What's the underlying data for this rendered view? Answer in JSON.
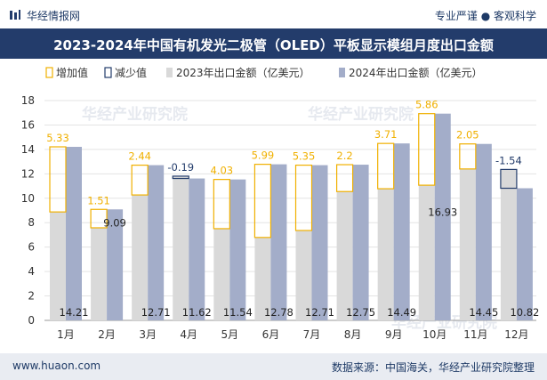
{
  "header": {
    "brand": "华经情报网",
    "tagline": "专业严谨 ● 客观科学"
  },
  "footer": {
    "site": "www.huaon.com",
    "source": "数据来源：中国海关，华经产业研究院整理"
  },
  "watermark": "华经产业研究院",
  "colors": {
    "brand_navy": "#233c6b",
    "bar_2023": "#d9d9d9",
    "bar_2024": "#a3adc9",
    "increase": "#f0b000",
    "decrease": "#233c6b",
    "increase_label": "#f0b000",
    "decrease_label": "#233c6b"
  },
  "chart_data": {
    "type": "bar",
    "title": "2023-2024年中国有机发光二极管（OLED）平板显示模组月度出口金额",
    "categories": [
      "1月",
      "2月",
      "3月",
      "4月",
      "5月",
      "6月",
      "7月",
      "8月",
      "9月",
      "10月",
      "11月",
      "12月"
    ],
    "series": [
      {
        "name": "2023年出口金额（亿美元）",
        "values": [
          8.88,
          7.58,
          10.27,
          11.81,
          7.51,
          6.79,
          7.36,
          10.55,
          10.78,
          11.07,
          12.4,
          12.36
        ]
      },
      {
        "name": "2024年出口金额（亿美元）",
        "values": [
          14.21,
          9.09,
          12.71,
          11.62,
          11.54,
          12.78,
          12.71,
          12.75,
          14.49,
          16.93,
          14.45,
          10.82
        ]
      }
    ],
    "change": {
      "values": [
        5.33,
        1.51,
        2.44,
        -0.19,
        4.03,
        5.99,
        5.35,
        2.2,
        3.71,
        5.86,
        2.05,
        -1.54
      ],
      "labels": [
        "5.33",
        "1.51",
        "2.44",
        "-0.19",
        "4.03",
        "5.99",
        "5.35",
        "2.2",
        "3.71",
        "5.86",
        "2.05",
        "-1.54"
      ]
    },
    "legend": [
      "增加值",
      "减少值",
      "2023年出口金额（亿美元）",
      "2024年出口金额（亿美元）"
    ],
    "legend_position": "top-left",
    "ylim": [
      0,
      18
    ],
    "yticks": [
      0,
      2,
      4,
      6,
      8,
      10,
      12,
      14,
      16,
      18
    ],
    "grid": true
  }
}
